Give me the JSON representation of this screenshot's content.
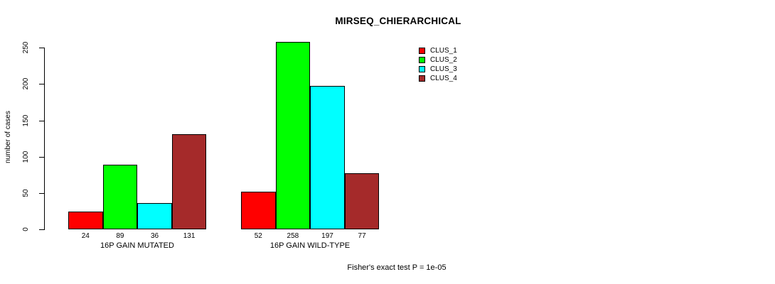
{
  "title": "MIRSEQ_CHIERARCHICAL",
  "footer_note": "Fisher's exact test P = 1e-05",
  "chart_data": {
    "type": "bar",
    "title": "MIRSEQ_CHIERARCHICAL",
    "xlabel": "",
    "ylabel": "number of cases",
    "ylim": [
      0,
      250
    ],
    "yticks": [
      0,
      50,
      100,
      150,
      200,
      250
    ],
    "grid": false,
    "legend_position": "top-right",
    "bar_value_labels_shown": true,
    "categories": [
      "16P GAIN MUTATED",
      "16P GAIN WILD-TYPE"
    ],
    "series": [
      {
        "name": "CLUS_1",
        "color": "#ff0000",
        "values": [
          24,
          52
        ]
      },
      {
        "name": "CLUS_2",
        "color": "#00ff00",
        "values": [
          89,
          258
        ]
      },
      {
        "name": "CLUS_3",
        "color": "#00ffff",
        "values": [
          36,
          197
        ]
      },
      {
        "name": "CLUS_4",
        "color": "#a52a2a",
        "values": [
          131,
          77
        ]
      }
    ],
    "annotation": "Fisher's exact test P = 1e-05"
  }
}
